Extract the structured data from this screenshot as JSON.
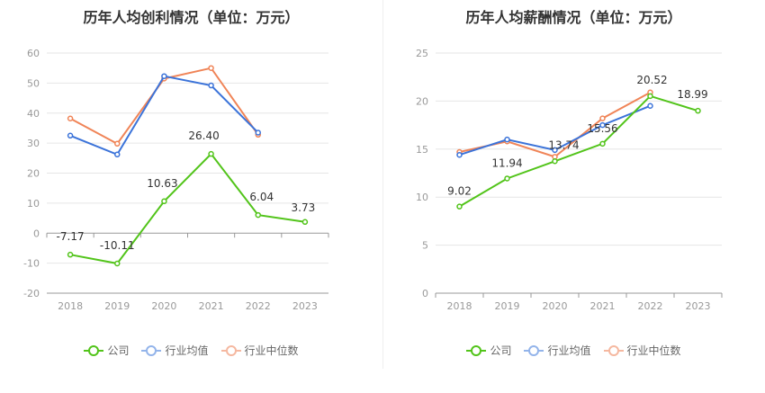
{
  "legend": {
    "company": "公司",
    "industry_avg": "行业均值",
    "industry_median": "行业中位数"
  },
  "colors": {
    "company": "#52c41a",
    "industry_avg": "#3b73d9",
    "industry_median": "#f08457",
    "company_legend": "#52c41a",
    "industry_avg_legend": "#93b4ea",
    "industry_median_legend": "#f5b8a0"
  },
  "chart_data": [
    {
      "type": "line",
      "title": "历年人均创利情况（单位：万元）",
      "categories": [
        "2018",
        "2019",
        "2020",
        "2021",
        "2022",
        "2023"
      ],
      "ylim": [
        -20,
        60
      ],
      "yticks": [
        -20,
        -10,
        0,
        10,
        20,
        30,
        40,
        50,
        60
      ],
      "grid": true,
      "legend_position": "bottom",
      "series": [
        {
          "name": "公司",
          "key": "company",
          "values": [
            -7.17,
            -10.11,
            10.63,
            26.4,
            6.04,
            3.73
          ],
          "labels": [
            "-7.17",
            "-10.11",
            "10.63",
            "26.40",
            "6.04",
            "3.73"
          ]
        },
        {
          "name": "行业均值",
          "key": "industry_avg",
          "values": [
            32.5,
            26.2,
            52.3,
            49.2,
            33.5,
            null
          ]
        },
        {
          "name": "行业中位数",
          "key": "industry_median",
          "values": [
            38.2,
            29.8,
            51.5,
            55.0,
            32.8,
            null
          ]
        }
      ]
    },
    {
      "type": "line",
      "title": "历年人均薪酬情况（单位：万元）",
      "categories": [
        "2018",
        "2019",
        "2020",
        "2021",
        "2022",
        "2023"
      ],
      "ylim": [
        0,
        25
      ],
      "yticks": [
        0,
        5,
        10,
        15,
        20,
        25
      ],
      "grid": true,
      "legend_position": "bottom",
      "series": [
        {
          "name": "公司",
          "key": "company",
          "values": [
            9.02,
            11.94,
            13.74,
            15.56,
            20.52,
            18.99
          ],
          "labels": [
            "9.02",
            "11.94",
            "13.74",
            "15.56",
            "20.52",
            "18.99"
          ]
        },
        {
          "name": "行业均值",
          "key": "industry_avg",
          "values": [
            14.4,
            16.0,
            14.9,
            17.5,
            19.5,
            null
          ]
        },
        {
          "name": "行业中位数",
          "key": "industry_median",
          "values": [
            14.7,
            15.8,
            14.2,
            18.2,
            20.9,
            null
          ]
        }
      ]
    }
  ]
}
